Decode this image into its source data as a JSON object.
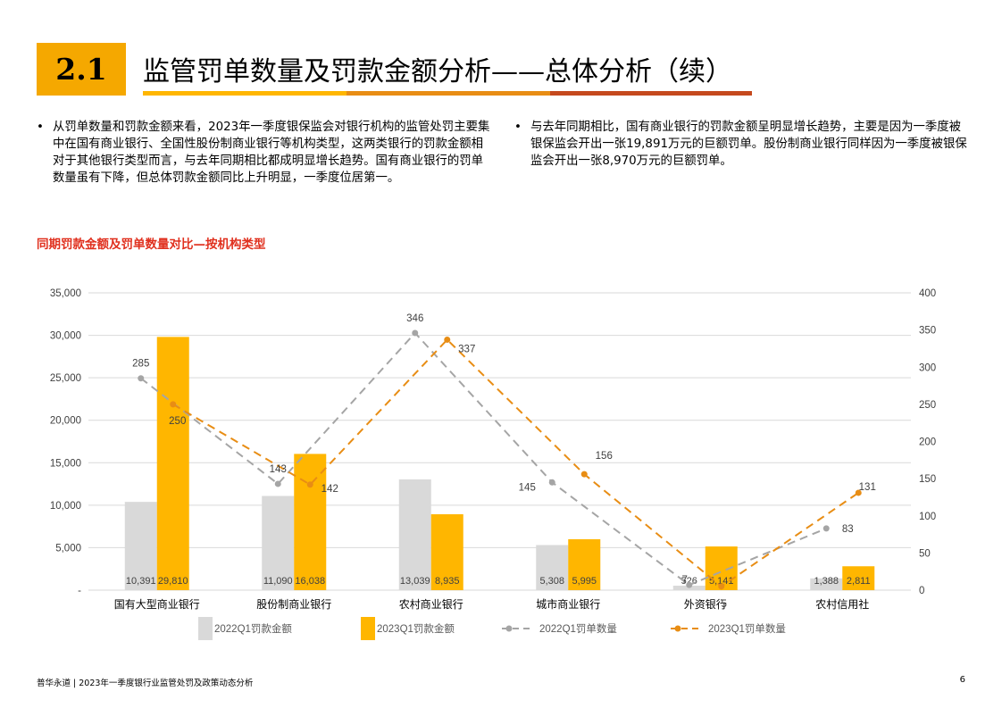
{
  "header": {
    "section_number": "2.1",
    "title": "监管罚单数量及罚款金额分析——总体分析（续）"
  },
  "bullets": {
    "left": "从罚单数量和罚款金额来看，2023年一季度银保监会对银行机构的监管处罚主要集中在国有商业银行、全国性股份制商业银行等机构类型，这两类银行的罚款金额相对于其他银行类型而言，与去年同期相比都成明显增长趋势。国有商业银行的罚单数量虽有下降，但总体罚款金额同比上升明显，一季度位居第一。",
    "right": "与去年同期相比，国有商业银行的罚款金额呈明显增长趋势，主要是因为一季度被银保监会开出一张19,891万元的巨额罚单。股份制商业银行同样因为一季度被银保监会开出一张8,970万元的巨额罚单。"
  },
  "chart_title": "同期罚款金额及罚单数量对比—按机构类型",
  "chart_data": {
    "type": "bar",
    "categories": [
      "国有大型商业银行",
      "股份制商业银行",
      "农村商业银行",
      "城市商业银行",
      "外资银行",
      "农村信用社"
    ],
    "series": [
      {
        "name": "2022Q1罚款金额",
        "type": "bar",
        "axis": "left",
        "values": [
          10391,
          11090,
          13039,
          5308,
          526,
          1388
        ],
        "labels": [
          "10,391",
          "11,090",
          "13,039",
          "5,308",
          "526",
          "1,388"
        ],
        "color": "#D9D9D9"
      },
      {
        "name": "2023Q1罚款金额",
        "type": "bar",
        "axis": "left",
        "values": [
          29810,
          16038,
          8935,
          5995,
          5141,
          2811
        ],
        "labels": [
          "29,810",
          "16,038",
          "8,935",
          "5,995",
          "5,141",
          "2,811"
        ],
        "color": "#FFB600"
      },
      {
        "name": "2022Q1罚单数量",
        "type": "line",
        "axis": "right",
        "values": [
          285,
          143,
          346,
          145,
          7,
          83
        ],
        "color": "#A5A5A5"
      },
      {
        "name": "2023Q1罚单数量",
        "type": "line",
        "axis": "right",
        "values": [
          250,
          142,
          337,
          156,
          5,
          131
        ],
        "color": "#E88D14"
      }
    ],
    "y_left": {
      "min": 0,
      "max": 35000,
      "ticks": [
        "-",
        "5,000",
        "10,000",
        "15,000",
        "20,000",
        "25,000",
        "30,000",
        "35,000"
      ]
    },
    "y_right": {
      "min": 0,
      "max": 400,
      "ticks": [
        "0",
        "50",
        "100",
        "150",
        "200",
        "250",
        "300",
        "350",
        "400"
      ]
    },
    "legend_position": "bottom",
    "grid": true
  },
  "footer": {
    "text": "普华永道 | 2023年一季度银行业监管处罚及政策动态分析",
    "page_number": "6"
  }
}
